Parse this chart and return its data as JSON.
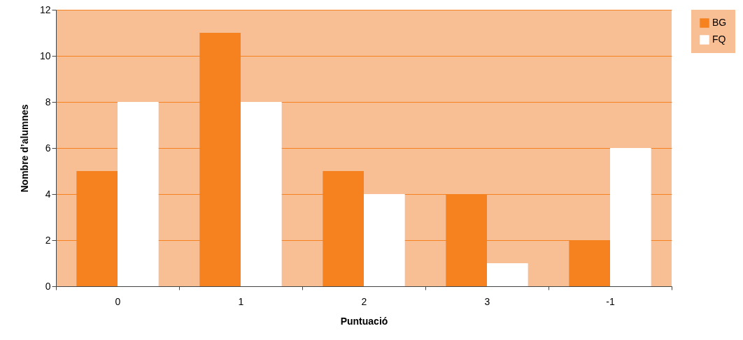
{
  "chart_data": {
    "type": "bar",
    "xlabel": "Puntuació",
    "ylabel": "Nombre d’alumnes",
    "categories": [
      "0",
      "1",
      "2",
      "3",
      "-1"
    ],
    "series": [
      {
        "name": "BG",
        "color": "#f5821f",
        "values": [
          5,
          11,
          5,
          4,
          2
        ]
      },
      {
        "name": "FQ",
        "color": "#ffffff",
        "values": [
          8,
          8,
          4,
          1,
          6
        ]
      }
    ],
    "ylim": [
      0,
      12
    ],
    "yticks": [
      0,
      2,
      4,
      6,
      8,
      10,
      12
    ],
    "grid": "y",
    "legend": "right"
  }
}
